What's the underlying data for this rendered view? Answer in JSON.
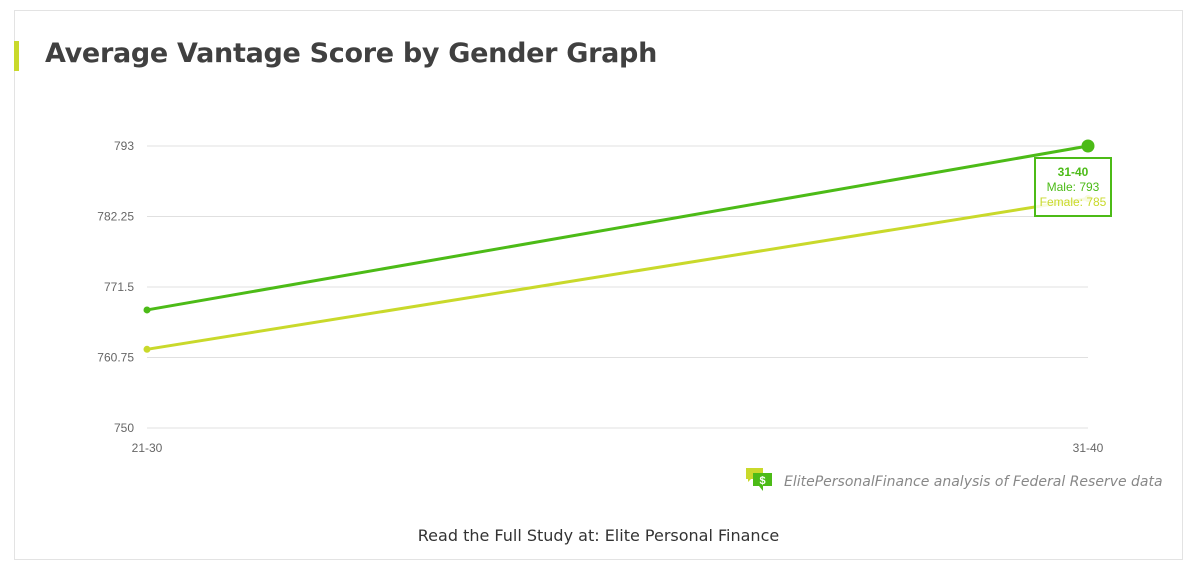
{
  "title": "Average Vantage Score by Gender Graph",
  "tooltip": {
    "category": "31-40",
    "male": "Male: 793",
    "female": "Female: 785"
  },
  "source": {
    "icon": "chat-dollar-icon",
    "text": "ElitePersonalFinance analysis of Federal Reserve data"
  },
  "footer": "Read the Full Study at: Elite Personal Finance",
  "colors": {
    "male": "#4cbb17",
    "female": "#c9d92b",
    "accent": "#c9d92b",
    "grid": "#e0e0e0"
  },
  "chart_data": {
    "type": "line",
    "title": "Average Vantage Score by Gender Graph",
    "categories": [
      "21-30",
      "31-40"
    ],
    "series": [
      {
        "name": "Male",
        "values": [
          768,
          793
        ],
        "color": "#4cbb17"
      },
      {
        "name": "Female",
        "values": [
          762,
          785
        ],
        "color": "#c9d92b"
      }
    ],
    "xlabel": "",
    "ylabel": "",
    "ylim": [
      750,
      793
    ],
    "yticks": [
      750,
      760.75,
      771.5,
      782.25,
      793
    ],
    "ytick_labels": [
      "750",
      "760.75",
      "771.5",
      "782.25",
      "793"
    ],
    "grid": true,
    "legend": "none",
    "annotations": [
      "31-40",
      "Male: 793",
      "Female: 785"
    ]
  }
}
